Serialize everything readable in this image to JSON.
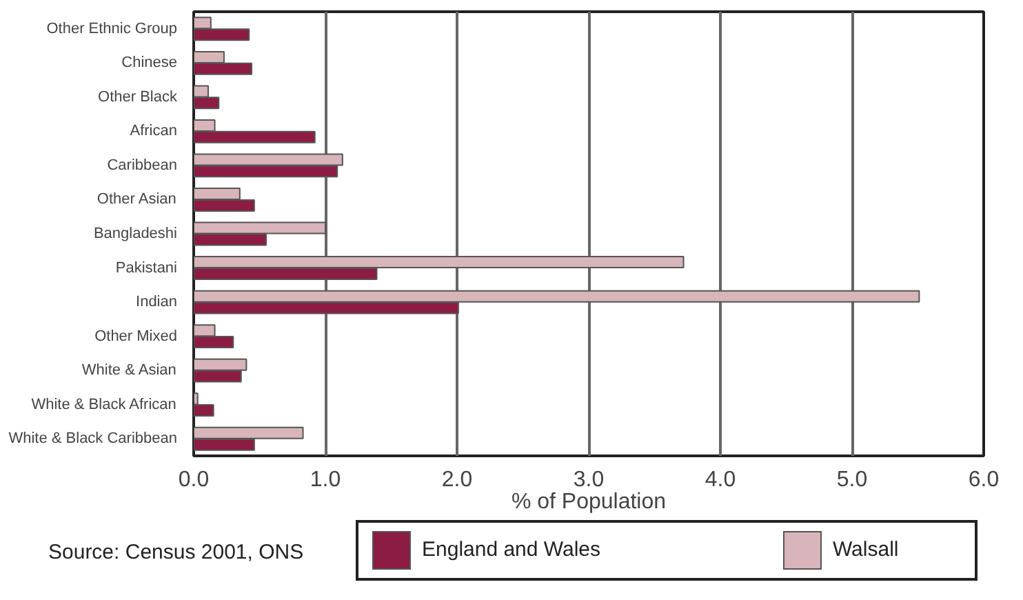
{
  "chart_data": {
    "type": "bar",
    "orientation": "horizontal",
    "categories": [
      "Other Ethnic Group",
      "Chinese",
      "Other Black",
      "African",
      "Caribbean",
      "Other Asian",
      "Bangladeshi",
      "Pakistani",
      "Indian",
      "Other Mixed",
      "White & Asian",
      "White & Black African",
      "White & Black Caribbean"
    ],
    "series": [
      {
        "name": "England and Wales",
        "color": "#8c1c44",
        "values": [
          0.42,
          0.44,
          0.19,
          0.92,
          1.09,
          0.46,
          0.55,
          1.39,
          2.01,
          0.3,
          0.36,
          0.15,
          0.46
        ]
      },
      {
        "name": "Walsall",
        "color": "#d8b4bb",
        "values": [
          0.13,
          0.23,
          0.11,
          0.16,
          1.13,
          0.35,
          1.0,
          3.72,
          5.51,
          0.16,
          0.4,
          0.03,
          0.83
        ]
      }
    ],
    "xlim": [
      0,
      6
    ],
    "xticks": [
      {
        "value": 0,
        "label": "0.0"
      },
      {
        "value": 1,
        "label": "1.0"
      },
      {
        "value": 2,
        "label": "2.0"
      },
      {
        "value": 3,
        "label": "3.0"
      },
      {
        "value": 4,
        "label": "4.0"
      },
      {
        "value": 5,
        "label": "5.0"
      },
      {
        "value": 6,
        "label": "6.0"
      }
    ],
    "xlabel": "% of Population",
    "grid": "x",
    "legend": "bottom",
    "annotations": [
      "Source: Census 2001, ONS"
    ]
  }
}
